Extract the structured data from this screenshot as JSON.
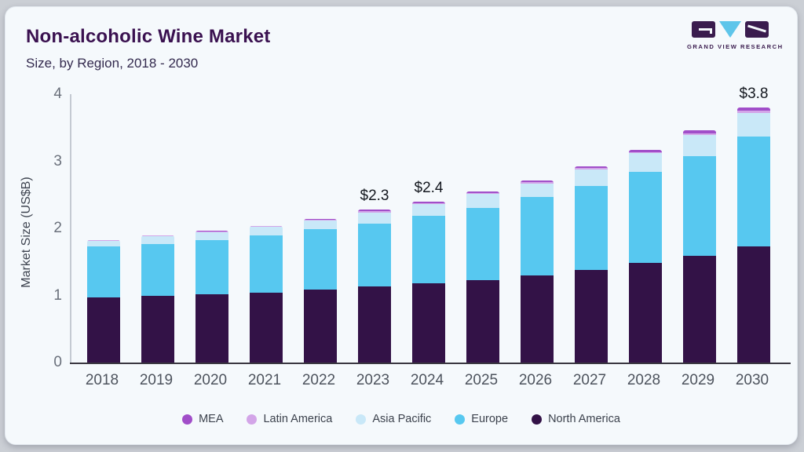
{
  "header": {
    "title": "Non-alcoholic Wine Market",
    "subtitle": "Size, by Region, 2018 - 2030"
  },
  "logo": {
    "text": "GRAND VIEW RESEARCH",
    "brand_dark": "#3a1c4e",
    "brand_blue": "#5ec5ea"
  },
  "chart_data": {
    "type": "bar",
    "stacked": true,
    "title": "Non-alcoholic Wine Market Size, by Region, 2018 - 2030",
    "xlabel": "",
    "ylabel": "Market Size (US$B)",
    "ylim": [
      0,
      4
    ],
    "yticks": [
      0,
      1,
      2,
      3,
      4
    ],
    "grid": false,
    "legend_position": "bottom",
    "categories": [
      "2018",
      "2019",
      "2020",
      "2021",
      "2022",
      "2023",
      "2024",
      "2025",
      "2026",
      "2027",
      "2028",
      "2029",
      "2030"
    ],
    "series": [
      {
        "name": "North America",
        "color": "#331247",
        "values": [
          0.97,
          1.0,
          1.02,
          1.04,
          1.09,
          1.13,
          1.18,
          1.23,
          1.3,
          1.38,
          1.48,
          1.59,
          1.73
        ]
      },
      {
        "name": "Europe",
        "color": "#57c8f0",
        "values": [
          0.76,
          0.77,
          0.8,
          0.85,
          0.9,
          0.94,
          1.01,
          1.08,
          1.17,
          1.25,
          1.36,
          1.49,
          1.64
        ]
      },
      {
        "name": "Asia Pacific",
        "color": "#c9e8f8",
        "values": [
          0.08,
          0.11,
          0.12,
          0.13,
          0.13,
          0.17,
          0.17,
          0.2,
          0.2,
          0.25,
          0.28,
          0.31,
          0.35
        ]
      },
      {
        "name": "Latin America",
        "color": "#d3a5e8",
        "values": [
          0.01,
          0.01,
          0.01,
          0.01,
          0.01,
          0.02,
          0.02,
          0.02,
          0.02,
          0.02,
          0.02,
          0.03,
          0.03
        ]
      },
      {
        "name": "MEA",
        "color": "#a14ec9",
        "values": [
          0.01,
          0.01,
          0.01,
          0.01,
          0.01,
          0.02,
          0.02,
          0.02,
          0.02,
          0.03,
          0.03,
          0.04,
          0.05
        ]
      }
    ],
    "totals": [
      1.83,
      1.9,
      1.96,
      2.04,
      2.14,
      2.28,
      2.4,
      2.55,
      2.71,
      2.93,
      3.17,
      3.46,
      3.8
    ],
    "legend_order": [
      "MEA",
      "Latin America",
      "Asia Pacific",
      "Europe",
      "North America"
    ],
    "annotations": [
      {
        "category": "2023",
        "text": "$2.3"
      },
      {
        "category": "2024",
        "text": "$2.4"
      },
      {
        "category": "2030",
        "text": "$3.8"
      }
    ]
  }
}
